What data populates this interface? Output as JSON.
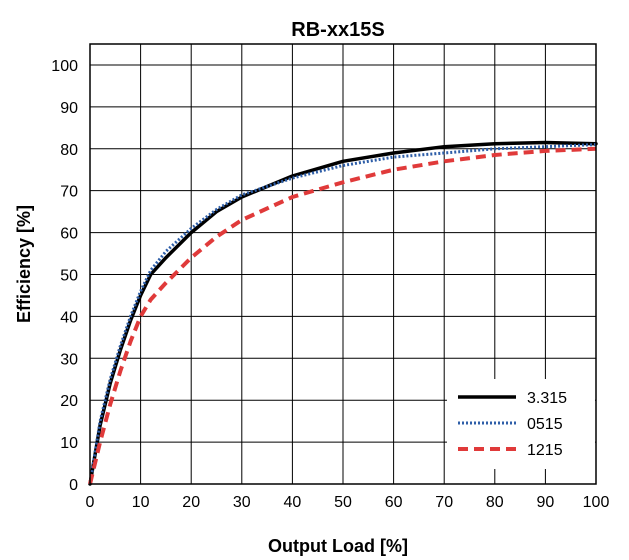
{
  "chart_data": {
    "type": "line",
    "title": "RB-xx15S",
    "xlabel": "Output Load [%]",
    "ylabel": "Efficiency [%]",
    "xlim": [
      0,
      100
    ],
    "ylim": [
      0,
      105
    ],
    "xticks": [
      0,
      10,
      20,
      30,
      40,
      50,
      60,
      70,
      80,
      90,
      100
    ],
    "yticks": [
      0,
      10,
      20,
      30,
      40,
      50,
      60,
      70,
      80,
      90,
      100
    ],
    "grid": true,
    "legend_position": "bottom-right",
    "series": [
      {
        "name": "3.315",
        "color": "#000000",
        "style": "solid",
        "x": [
          0,
          2,
          4,
          6,
          8,
          10,
          12,
          15,
          20,
          25,
          30,
          40,
          50,
          60,
          70,
          80,
          90,
          100
        ],
        "y": [
          0,
          14,
          24,
          32,
          39,
          45,
          50,
          54,
          60,
          65,
          68.5,
          73.5,
          77,
          79,
          80.5,
          81.2,
          81.5,
          81.2
        ]
      },
      {
        "name": "0515",
        "color": "#2e5ea8",
        "style": "dotted",
        "x": [
          0,
          2,
          4,
          6,
          8,
          10,
          12,
          15,
          20,
          25,
          30,
          40,
          50,
          60,
          70,
          80,
          90,
          100
        ],
        "y": [
          0,
          15,
          25,
          33,
          40,
          46,
          51,
          55.5,
          61,
          65.5,
          69,
          73,
          76,
          78,
          79,
          80,
          80.5,
          81
        ]
      },
      {
        "name": "1215",
        "color": "#e03a3a",
        "style": "dashed",
        "x": [
          0,
          2,
          4,
          6,
          8,
          10,
          12,
          15,
          20,
          25,
          30,
          40,
          50,
          60,
          70,
          80,
          90,
          100
        ],
        "y": [
          0,
          10,
          19,
          27,
          34,
          40,
          44,
          48,
          54,
          59,
          63,
          68.5,
          72,
          75,
          77,
          78.5,
          79.5,
          80
        ]
      }
    ]
  }
}
